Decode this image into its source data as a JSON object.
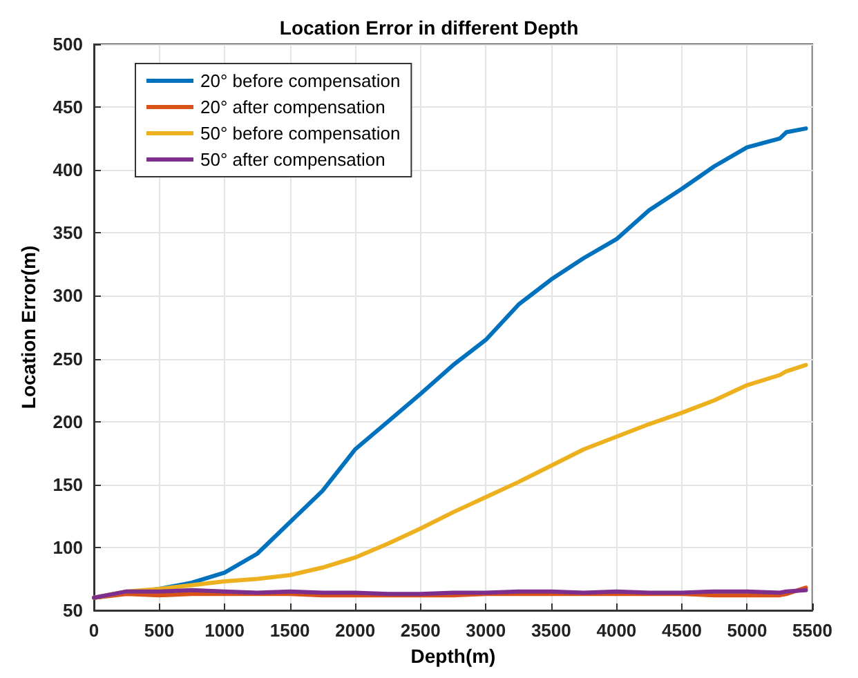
{
  "chart_data": {
    "type": "line",
    "title": "Location Error in different Depth",
    "xlabel": "Depth(m)",
    "ylabel": "Location Error(m)",
    "x": [
      0,
      250,
      500,
      750,
      1000,
      1250,
      1500,
      1750,
      2000,
      2250,
      2500,
      2750,
      3000,
      3250,
      3500,
      3750,
      4000,
      4250,
      4500,
      4750,
      5000,
      5250,
      5300,
      5450
    ],
    "series": [
      {
        "name": "20° before compensation",
        "color": "#0072bd",
        "values": [
          60,
          64,
          67,
          72,
          80,
          95,
          120,
          145,
          178,
          200,
          222,
          245,
          265,
          293,
          313,
          330,
          345,
          368,
          385,
          403,
          418,
          425,
          430,
          433
        ]
      },
      {
        "name": "20° after compensation",
        "color": "#d95319",
        "values": [
          60,
          63,
          62,
          63,
          63,
          63,
          63,
          62,
          62,
          62,
          62,
          62,
          63,
          63,
          63,
          63,
          63,
          63,
          63,
          62,
          62,
          62,
          63,
          68
        ]
      },
      {
        "name": "50° before compensation",
        "color": "#edb120",
        "values": [
          60,
          65,
          67,
          70,
          73,
          75,
          78,
          84,
          92,
          103,
          115,
          128,
          140,
          152,
          165,
          178,
          188,
          198,
          207,
          217,
          229,
          237,
          240,
          245
        ]
      },
      {
        "name": "50° after compensation",
        "color": "#7e2f8e",
        "values": [
          60,
          65,
          65,
          66,
          65,
          64,
          65,
          64,
          64,
          63,
          63,
          64,
          64,
          65,
          65,
          64,
          65,
          64,
          64,
          65,
          65,
          64,
          65,
          66
        ]
      }
    ],
    "xlim": [
      0,
      5500
    ],
    "xticks": [
      0,
      500,
      1000,
      1500,
      2000,
      2500,
      3000,
      3500,
      4000,
      4500,
      5000,
      5500
    ],
    "ylim": [
      50,
      500
    ],
    "yticks": [
      50,
      100,
      150,
      200,
      250,
      300,
      350,
      400,
      450,
      500
    ],
    "grid": true,
    "legend": "top left",
    "marker": "none",
    "line_style": "solid"
  }
}
